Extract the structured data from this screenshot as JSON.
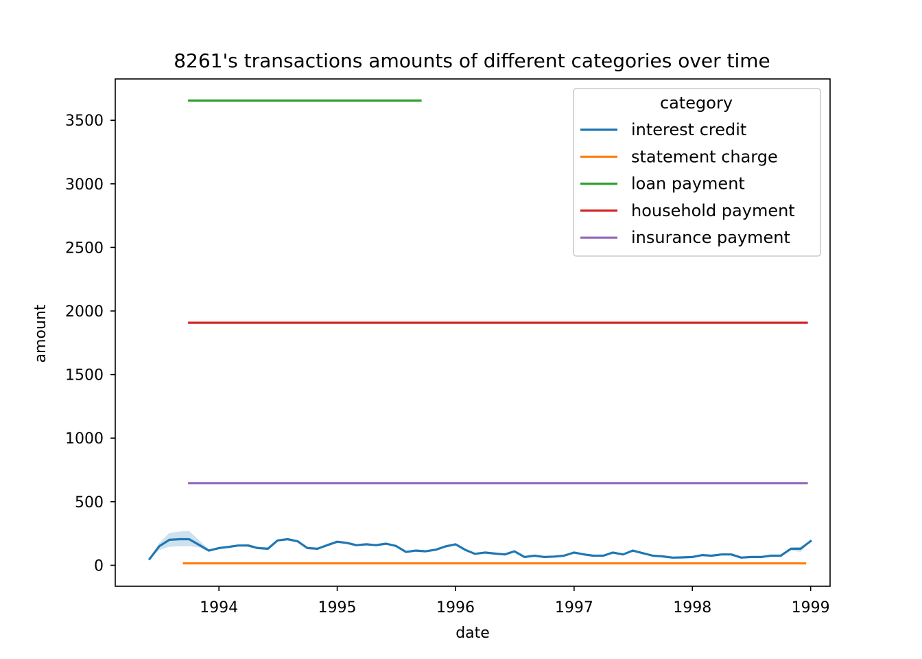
{
  "chart_data": {
    "type": "line",
    "title": "8261's transactions amounts of different categories over time",
    "xlabel": "date",
    "ylabel": "amount",
    "xlim": [
      "1993-02-15",
      "1999-03-02"
    ],
    "ylim": [
      -165,
      3825
    ],
    "x_ticks": [
      "1994",
      "1995",
      "1996",
      "1997",
      "1998",
      "1999"
    ],
    "y_ticks": [
      "0",
      "500",
      "1000",
      "1500",
      "2000",
      "2500",
      "3000",
      "3500"
    ],
    "legend": {
      "title": "category",
      "position": "upper right"
    },
    "colors": {
      "interest credit": "#1f77b4",
      "statement charge": "#ff7f0e",
      "loan payment": "#2ca02c",
      "household payment": "#d62728",
      "insurance payment": "#9467bd"
    },
    "series": [
      {
        "name": "interest credit",
        "x": [
          "1993-06-01",
          "1993-07-01",
          "1993-08-01",
          "1993-09-01",
          "1993-10-01",
          "1993-11-01",
          "1993-12-01",
          "1994-01-01",
          "1994-02-01",
          "1994-03-01",
          "1994-04-01",
          "1994-05-01",
          "1994-06-01",
          "1994-07-01",
          "1994-08-01",
          "1994-09-01",
          "1994-10-01",
          "1994-11-01",
          "1994-12-01",
          "1995-01-01",
          "1995-02-01",
          "1995-03-01",
          "1995-04-01",
          "1995-05-01",
          "1995-06-01",
          "1995-07-01",
          "1995-08-01",
          "1995-09-01",
          "1995-10-01",
          "1995-11-01",
          "1995-12-01",
          "1996-01-01",
          "1996-02-01",
          "1996-03-01",
          "1996-04-01",
          "1996-05-01",
          "1996-06-01",
          "1996-07-01",
          "1996-08-01",
          "1996-09-01",
          "1996-10-01",
          "1996-11-01",
          "1996-12-01",
          "1997-01-01",
          "1997-02-01",
          "1997-03-01",
          "1997-04-01",
          "1997-05-01",
          "1997-06-01",
          "1997-07-01",
          "1997-08-01",
          "1997-09-01",
          "1997-10-01",
          "1997-11-01",
          "1997-12-01",
          "1998-01-01",
          "1998-02-01",
          "1998-03-01",
          "1998-04-01",
          "1998-05-01",
          "1998-06-01",
          "1998-07-01",
          "1998-08-01",
          "1998-09-01",
          "1998-10-01",
          "1998-11-01",
          "1998-12-01",
          "1999-01-01"
        ],
        "values": [
          50,
          150,
          200,
          205,
          205,
          160,
          115,
          135,
          145,
          155,
          155,
          135,
          130,
          195,
          205,
          188,
          135,
          130,
          158,
          185,
          175,
          158,
          165,
          158,
          170,
          152,
          105,
          115,
          110,
          122,
          148,
          165,
          120,
          90,
          100,
          92,
          85,
          110,
          65,
          75,
          65,
          68,
          75,
          100,
          85,
          75,
          75,
          100,
          85,
          115,
          95,
          75,
          70,
          60,
          62,
          65,
          80,
          75,
          85,
          85,
          60,
          65,
          65,
          75,
          75,
          130,
          130,
          190
        ],
        "band_low": [
          50,
          120,
          145,
          150,
          150,
          140,
          110,
          128,
          140,
          150,
          145,
          128,
          125,
          195,
          205,
          185,
          130,
          128,
          155,
          180,
          170,
          155,
          160,
          148,
          165,
          150,
          100,
          108,
          105,
          115,
          145,
          162,
          115,
          85,
          95,
          88,
          80,
          108,
          62,
          72,
          62,
          65,
          72,
          95,
          80,
          72,
          72,
          95,
          80,
          108,
          90,
          72,
          68,
          58,
          60,
          62,
          78,
          72,
          82,
          82,
          58,
          62,
          62,
          72,
          72,
          115,
          105,
          190
        ],
        "band_high": [
          50,
          175,
          255,
          265,
          270,
          195,
          125,
          142,
          150,
          160,
          168,
          145,
          140,
          195,
          205,
          192,
          140,
          135,
          162,
          190,
          180,
          162,
          170,
          168,
          178,
          158,
          112,
          125,
          118,
          130,
          152,
          170,
          125,
          95,
          105,
          98,
          90,
          112,
          68,
          78,
          68,
          72,
          78,
          105,
          90,
          78,
          78,
          105,
          90,
          125,
          100,
          78,
          72,
          62,
          65,
          68,
          82,
          78,
          88,
          88,
          62,
          68,
          68,
          78,
          78,
          140,
          145,
          190
        ]
      },
      {
        "name": "statement charge",
        "x": [
          "1993-09-15",
          "1998-12-15"
        ],
        "values": [
          14.6,
          14.6
        ]
      },
      {
        "name": "loan payment",
        "x": [
          "1993-10-01",
          "1995-09-15"
        ],
        "values": [
          3655,
          3655
        ]
      },
      {
        "name": "household payment",
        "x": [
          "1993-10-01",
          "1998-12-20"
        ],
        "values": [
          1908,
          1908
        ]
      },
      {
        "name": "insurance payment",
        "x": [
          "1993-10-01",
          "1998-12-20"
        ],
        "values": [
          646,
          646
        ]
      }
    ]
  }
}
